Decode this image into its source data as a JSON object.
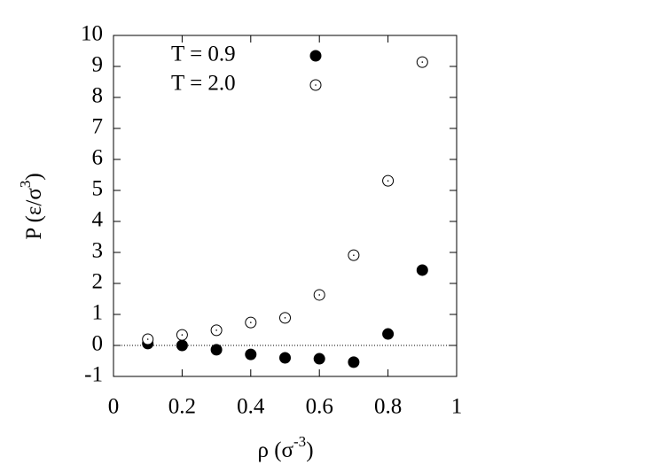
{
  "chart_data": {
    "type": "scatter",
    "xlabel": [
      "ρ (σ",
      "-3",
      ")"
    ],
    "ylabel": [
      "P (ε/σ",
      "3",
      ")"
    ],
    "xlim": [
      0,
      1
    ],
    "xticks": [
      0,
      0.2,
      0.4,
      0.6,
      0.8,
      1
    ],
    "ylim": [
      -1,
      10
    ],
    "yticks": [
      -1,
      0,
      1,
      2,
      3,
      4,
      5,
      6,
      7,
      8,
      9,
      10
    ],
    "zero_line": true,
    "legend": "upper-left",
    "series": [
      {
        "name": "T = 0.9",
        "color": "#000000",
        "filled": true,
        "x": [
          0.1,
          0.2,
          0.3,
          0.4,
          0.5,
          0.6,
          0.7,
          0.8,
          0.9
        ],
        "values": [
          0.06,
          0.0,
          -0.14,
          -0.29,
          -0.4,
          -0.43,
          -0.54,
          0.37,
          2.43
        ]
      },
      {
        "name": "T = 2.0",
        "color": "#000000",
        "filled": false,
        "x": [
          0.1,
          0.2,
          0.3,
          0.4,
          0.5,
          0.6,
          0.7,
          0.8,
          0.9
        ],
        "values": [
          0.2,
          0.34,
          0.49,
          0.74,
          0.89,
          1.63,
          2.91,
          5.31,
          9.14
        ]
      }
    ]
  }
}
